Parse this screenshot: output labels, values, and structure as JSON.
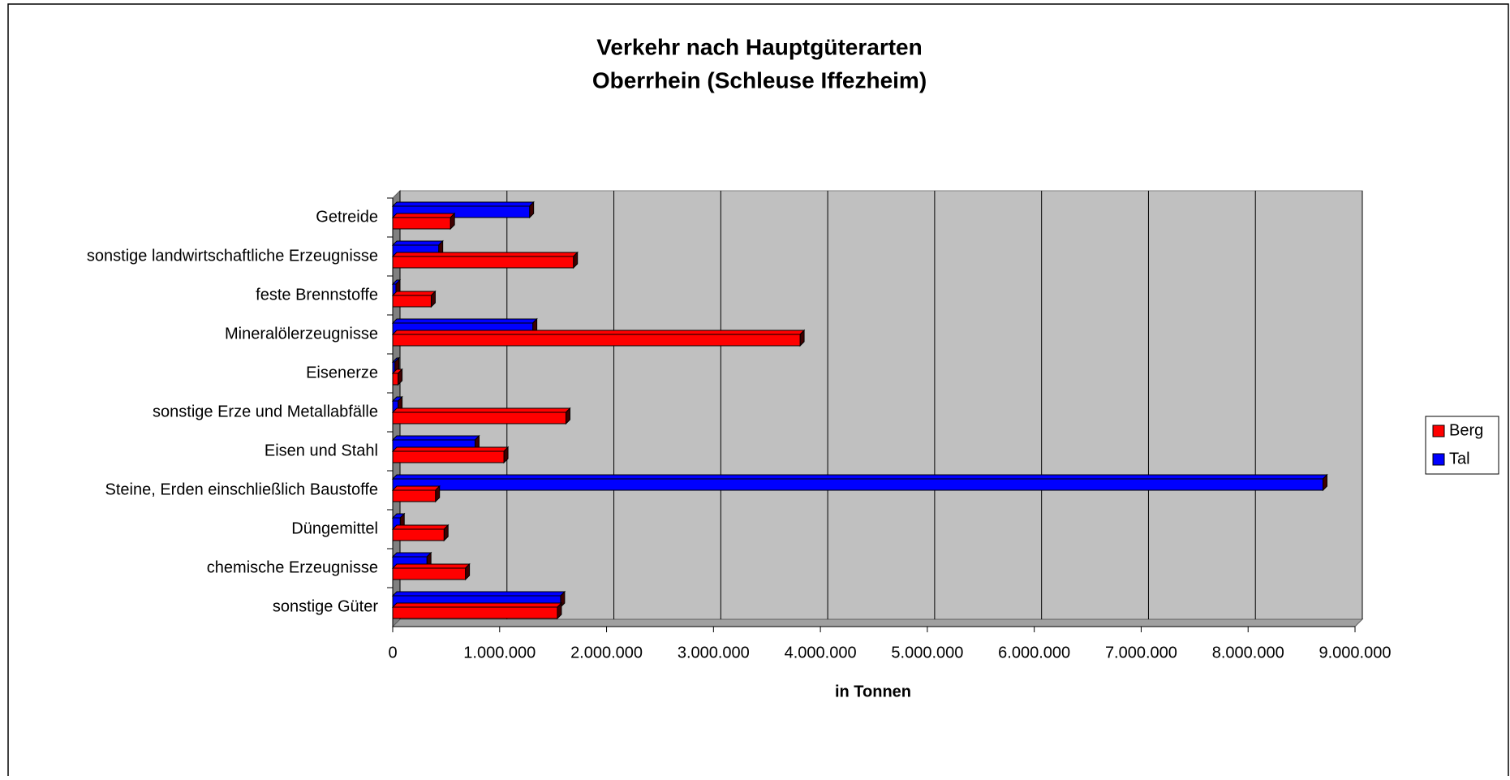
{
  "chart_data": {
    "type": "bar",
    "orientation": "horizontal",
    "title": "Verkehr nach Hauptgüterarten",
    "subtitle": "Oberrhein (Schleuse Iffezheim)",
    "x_label": "in Tonnen",
    "categories": [
      "Getreide",
      "sonstige landwirtschaftliche Erzeugnisse",
      "feste Brennstoffe",
      "Mineralölerzeugnisse",
      "Eisenerze",
      "sonstige Erze und Metallabfälle",
      "Eisen und Stahl",
      "Steine, Erden einschließlich Baustoffe",
      "Düngemittel",
      "chemische Erzeugnisse",
      "sonstige Güter"
    ],
    "series": [
      {
        "name": "Berg",
        "color": "#ff0000",
        "values": [
          540000,
          1690000,
          360000,
          3810000,
          50000,
          1620000,
          1040000,
          400000,
          480000,
          680000,
          1540000
        ]
      },
      {
        "name": "Tal",
        "color": "#0000ff",
        "values": [
          1280000,
          430000,
          30000,
          1310000,
          20000,
          50000,
          770000,
          8700000,
          70000,
          320000,
          1570000
        ]
      }
    ],
    "xlim": [
      0,
      9000000
    ],
    "xticks": [
      0,
      {
        "value": 1000000,
        "label": "1.000.000"
      },
      {
        "value": 2000000,
        "label": "2.000.000"
      },
      {
        "value": 3000000,
        "label": "3.000.000"
      },
      {
        "value": 4000000,
        "label": "4.000.000"
      },
      {
        "value": 5000000,
        "label": "5.000.000"
      },
      {
        "value": 6000000,
        "label": "6.000.000"
      },
      {
        "value": 7000000,
        "label": "7.000.000"
      },
      {
        "value": 8000000,
        "label": "8.000.000"
      },
      {
        "value": 9000000,
        "label": "9.000.000"
      }
    ],
    "grid": true,
    "legend": "right"
  }
}
